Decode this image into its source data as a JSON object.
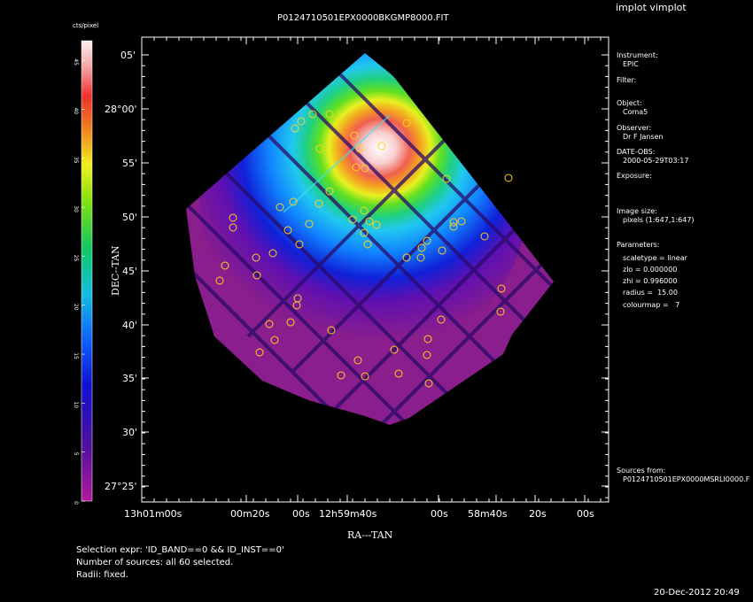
{
  "window": {
    "app_title": "implot vimplot",
    "file_title": "P0124710501EPX0000BKGMP8000.FIT"
  },
  "colorbar": {
    "unit_label": "cts/pixel",
    "ticks": [
      "0",
      "5",
      "10",
      "15",
      "20",
      "25",
      "30",
      "35",
      "40",
      "45"
    ]
  },
  "axes": {
    "xlabel": "RA---TAN",
    "ylabel": "DEC--TAN",
    "dec_ticks": [
      "28°00'",
      "55'",
      "50'",
      "45'",
      "40'",
      "35'",
      "30'",
      "27°25'",
      "05'"
    ],
    "ra_ticks": [
      "13h01m00s",
      "00m20s",
      "00s",
      "12h59m40s",
      "00s",
      "58m40s",
      "20s",
      "00s"
    ]
  },
  "info_panel": {
    "instrument_label": "Instrument:",
    "instrument": "EPIC",
    "filter_label": "Filter:",
    "object_label": "Object:",
    "object": "Coma5",
    "observer_label": "Observer:",
    "observer": "Dr F Jansen",
    "date_label": "DATE-OBS:",
    "date": "2000-05-29T03:17",
    "exposure_label": "Exposure:",
    "image_size_label": "Image size:",
    "image_size": "pixels (1:647,1:647)",
    "parameters_label": "Parameters:",
    "scaletype": "scaletype = linear",
    "zlo": "zlo = 0.000000",
    "zhi": "zhi = 0.996000",
    "radius": "radius =  15.00",
    "colourmap": "colourmap =   7",
    "sources_label": "Sources from:",
    "sources_file": "P0124710501EPX0000MSRLI0000.F"
  },
  "footer": {
    "selection": "Selection expr: 'ID_BAND==0 && ID_INST==0'",
    "num_sources": "Number of sources: all 60 selected.",
    "radii": "Radii: fixed.",
    "timestamp": "20-Dec-2012 20:49"
  },
  "colors": {
    "background": "#000000",
    "frame": "#ffffff",
    "source_marker": "#ffd21a",
    "field_fill": "#8a1e8c"
  }
}
